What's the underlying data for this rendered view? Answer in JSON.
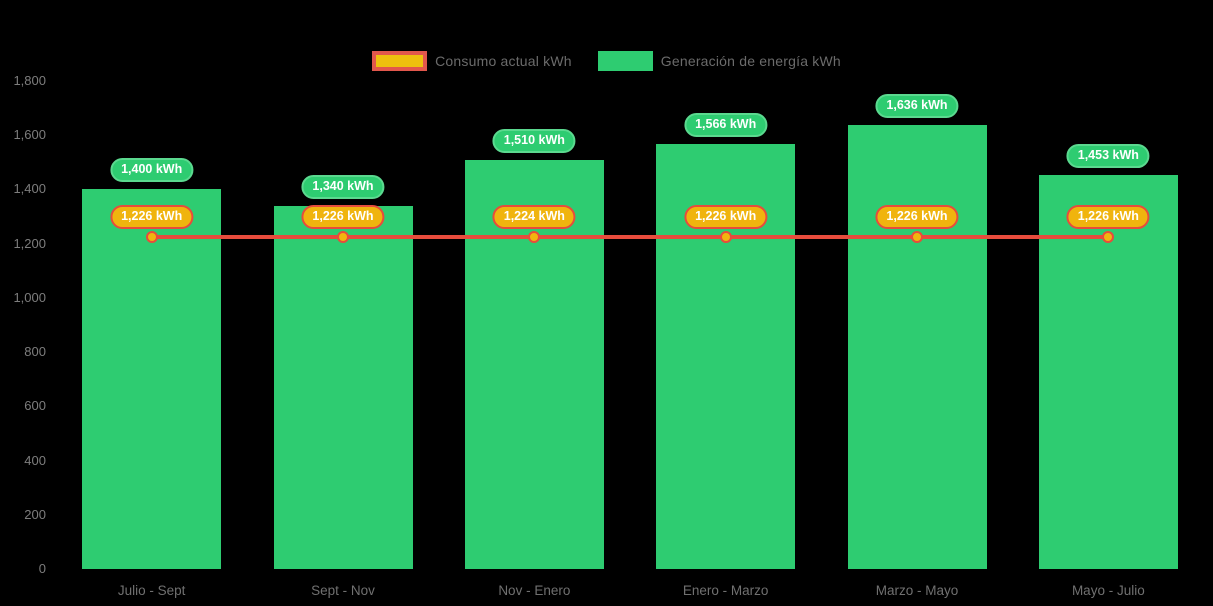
{
  "background": "#000000",
  "legend": {
    "position": "top-center",
    "items": [
      {
        "label": "Consumo actual kWh",
        "swatch_fill": "#eec00e",
        "swatch_border": "#e2574c"
      },
      {
        "label": "Generación de energía kWh",
        "swatch_fill": "#2ecc71",
        "swatch_border": "#2ecc71"
      }
    ]
  },
  "chart_data": {
    "type": "bar",
    "title": "",
    "xlabel": "",
    "ylabel": "",
    "categories": [
      "Julio - Sept",
      "Sept - Nov",
      "Nov - Enero",
      "Enero - Marzo",
      "Marzo - Mayo",
      "Mayo - Julio"
    ],
    "series": [
      {
        "name": "Consumo actual kWh",
        "type": "line",
        "values": [
          1226,
          1226,
          1224,
          1226,
          1226,
          1226
        ],
        "labels": [
          "1,226 kWh",
          "1,226 kWh",
          "1,224 kWh",
          "1,226 kWh",
          "1,226 kWh",
          "1,226 kWh"
        ],
        "line_color": "#e74c3c",
        "point_fill": "#f2b50e",
        "point_border": "#e74c3c",
        "label_fill": "#f0b40e",
        "label_border": "#e74c3c"
      },
      {
        "name": "Generación de energía kWh",
        "type": "bar",
        "values": [
          1400,
          1340,
          1510,
          1566,
          1636,
          1453
        ],
        "labels": [
          "1,400 kWh",
          "1,340 kWh",
          "1,510 kWh",
          "1,566 kWh",
          "1,636 kWh",
          "1,453 kWh"
        ],
        "bar_color": "#2ecc71",
        "label_fill": "#2ecc71",
        "label_border": "#5bd98f"
      }
    ],
    "ylim": [
      0,
      1800
    ],
    "ytick_step": 200,
    "ytick_labels": [
      "0",
      "200",
      "400",
      "600",
      "800",
      "1,000",
      "1,200",
      "1,400",
      "1,600",
      "1,800"
    ],
    "grid": false,
    "legend_position": "top-center",
    "axis_text_color": "#7d7d7d"
  }
}
